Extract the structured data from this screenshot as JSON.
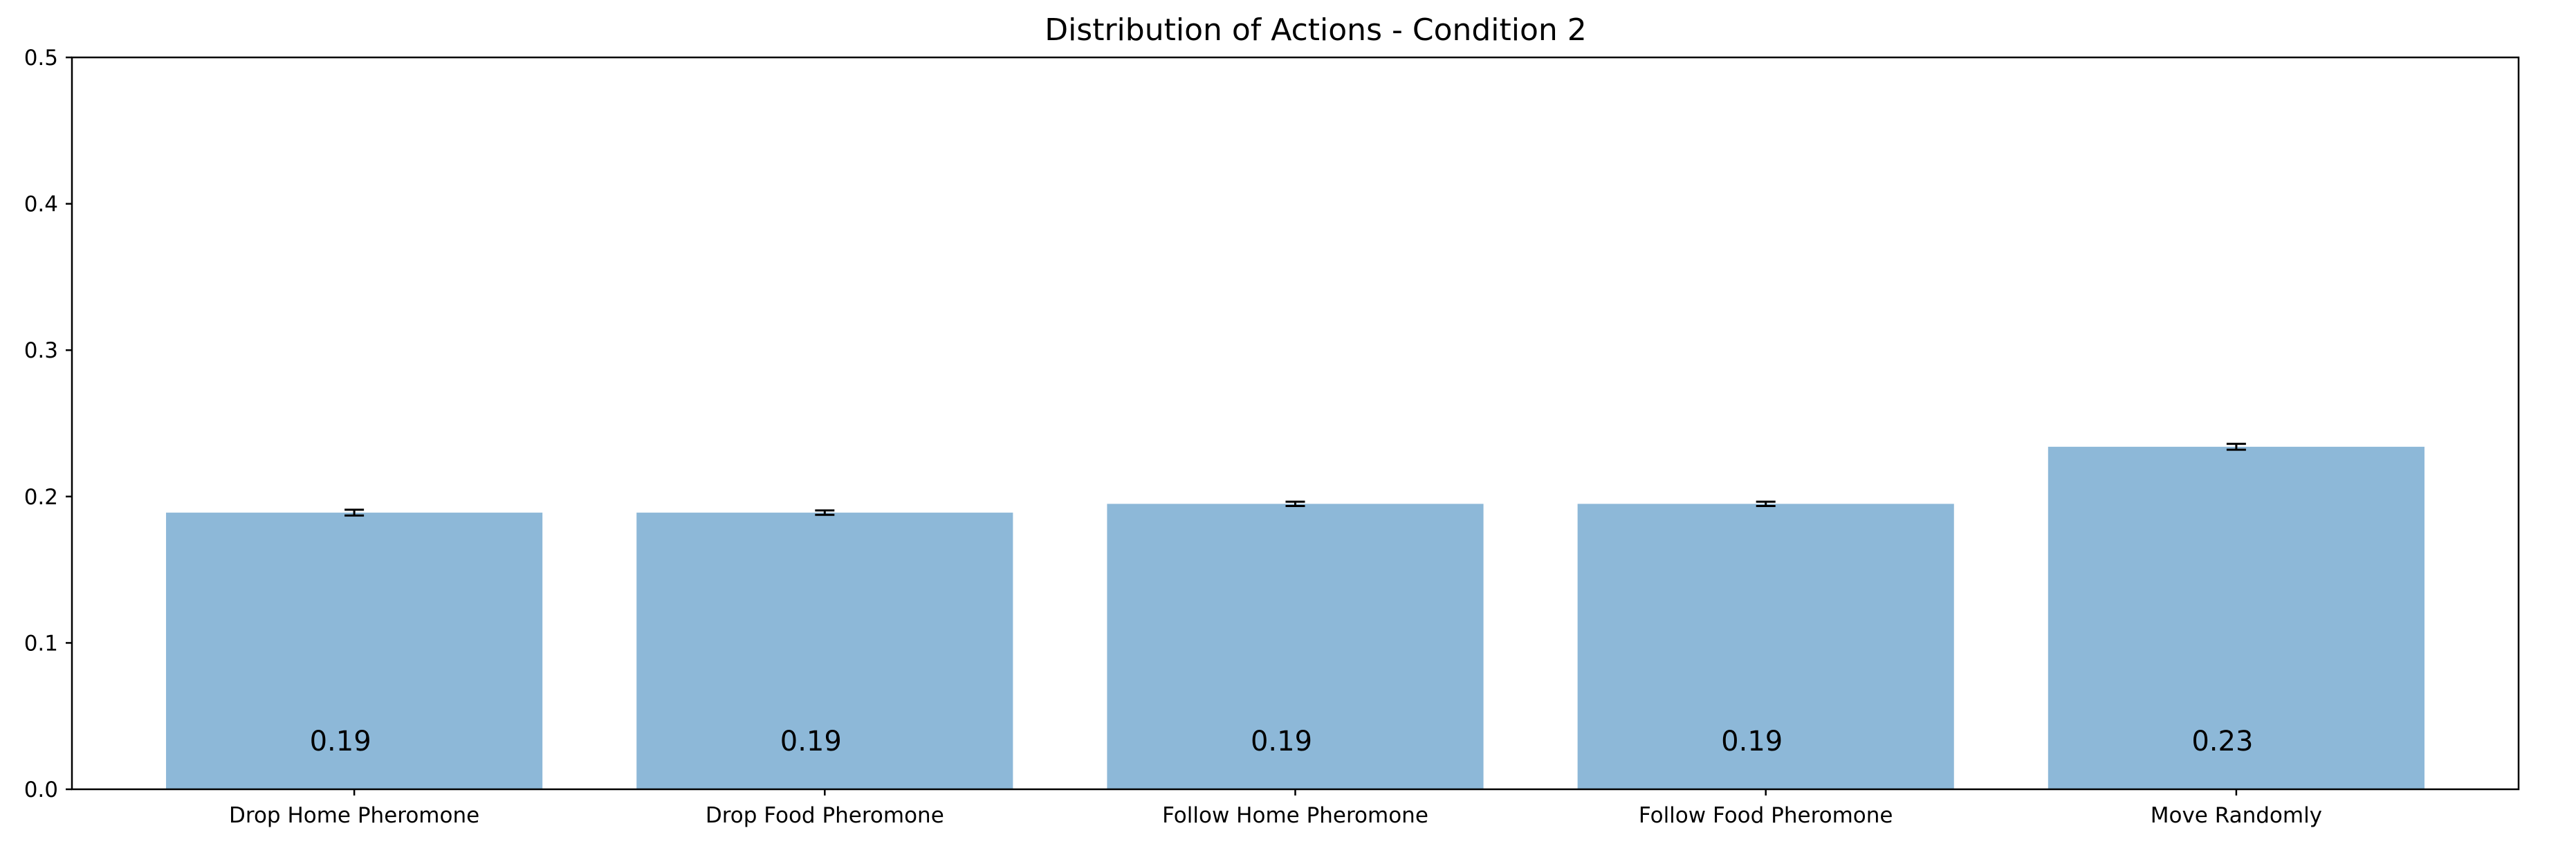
{
  "chart_data": {
    "type": "bar",
    "title": "Distribution of Actions - Condition 2",
    "xlabel": "",
    "ylabel": "",
    "categories": [
      "Drop Home Pheromone",
      "Drop Food Pheromone",
      "Follow Home Pheromone",
      "Follow Food Pheromone",
      "Move Randomly"
    ],
    "values": [
      0.189,
      0.189,
      0.195,
      0.195,
      0.234
    ],
    "errors": [
      0.002,
      0.0015,
      0.0015,
      0.0015,
      0.002
    ],
    "data_labels": [
      "0.19",
      "0.19",
      "0.19",
      "0.19",
      "0.23"
    ],
    "ylim": [
      0,
      0.5
    ],
    "yticks": [
      0.0,
      0.1,
      0.2,
      0.3,
      0.4,
      0.5
    ],
    "ytick_labels": [
      "0.0",
      "0.1",
      "0.2",
      "0.3",
      "0.4",
      "0.5"
    ],
    "bar_color": "#8db8d8",
    "grid": false
  }
}
